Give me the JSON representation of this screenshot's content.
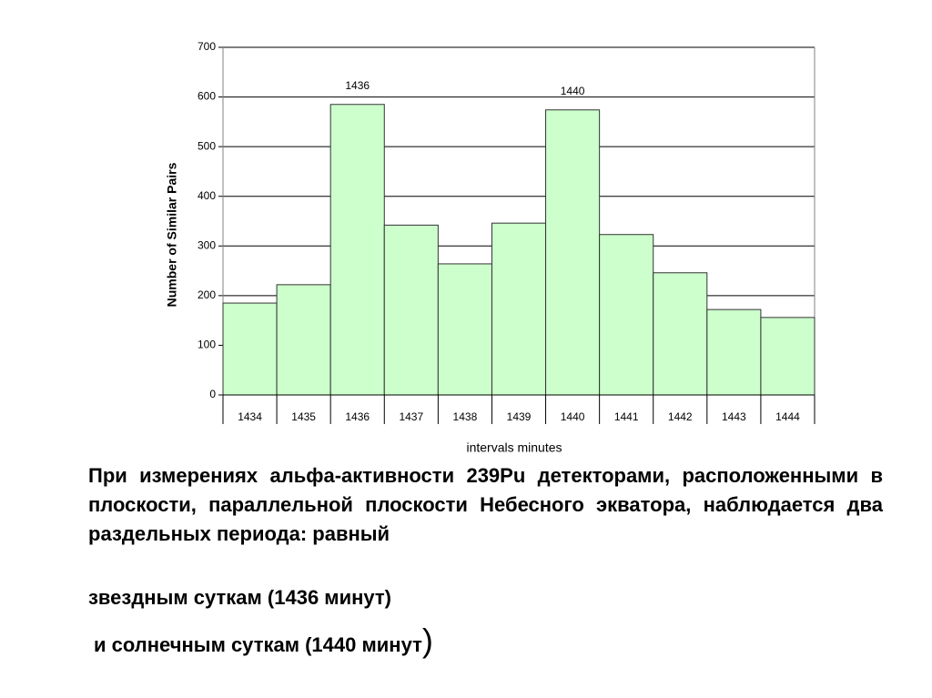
{
  "chart_data": {
    "type": "bar",
    "x_label": "intervals  minutes",
    "y_label": "Number of Similar Pairs",
    "categories": [
      "1434",
      "1435",
      "1436",
      "1437",
      "1438",
      "1439",
      "1440",
      "1441",
      "1442",
      "1443",
      "1444"
    ],
    "values": [
      185,
      222,
      585,
      342,
      264,
      346,
      574,
      323,
      246,
      172,
      156
    ],
    "color": "#ccffcc",
    "annotations": [
      "1436",
      "1440"
    ],
    "ylim": [
      0,
      700
    ],
    "yticks": [
      0,
      100,
      200,
      300,
      400,
      500,
      600,
      700
    ],
    "grid": true
  },
  "text": {
    "paragraph": "При измерениях альфа-активности 239Pu детекторами, расположенными в плоскости, параллельной плоскости Небесного экватора, наблюдается два раздельных периода: равный",
    "line2": "звездным суткам (1436 минут)",
    "line3": "и солнечным суткам (1440 минут",
    "bracket": ")"
  }
}
